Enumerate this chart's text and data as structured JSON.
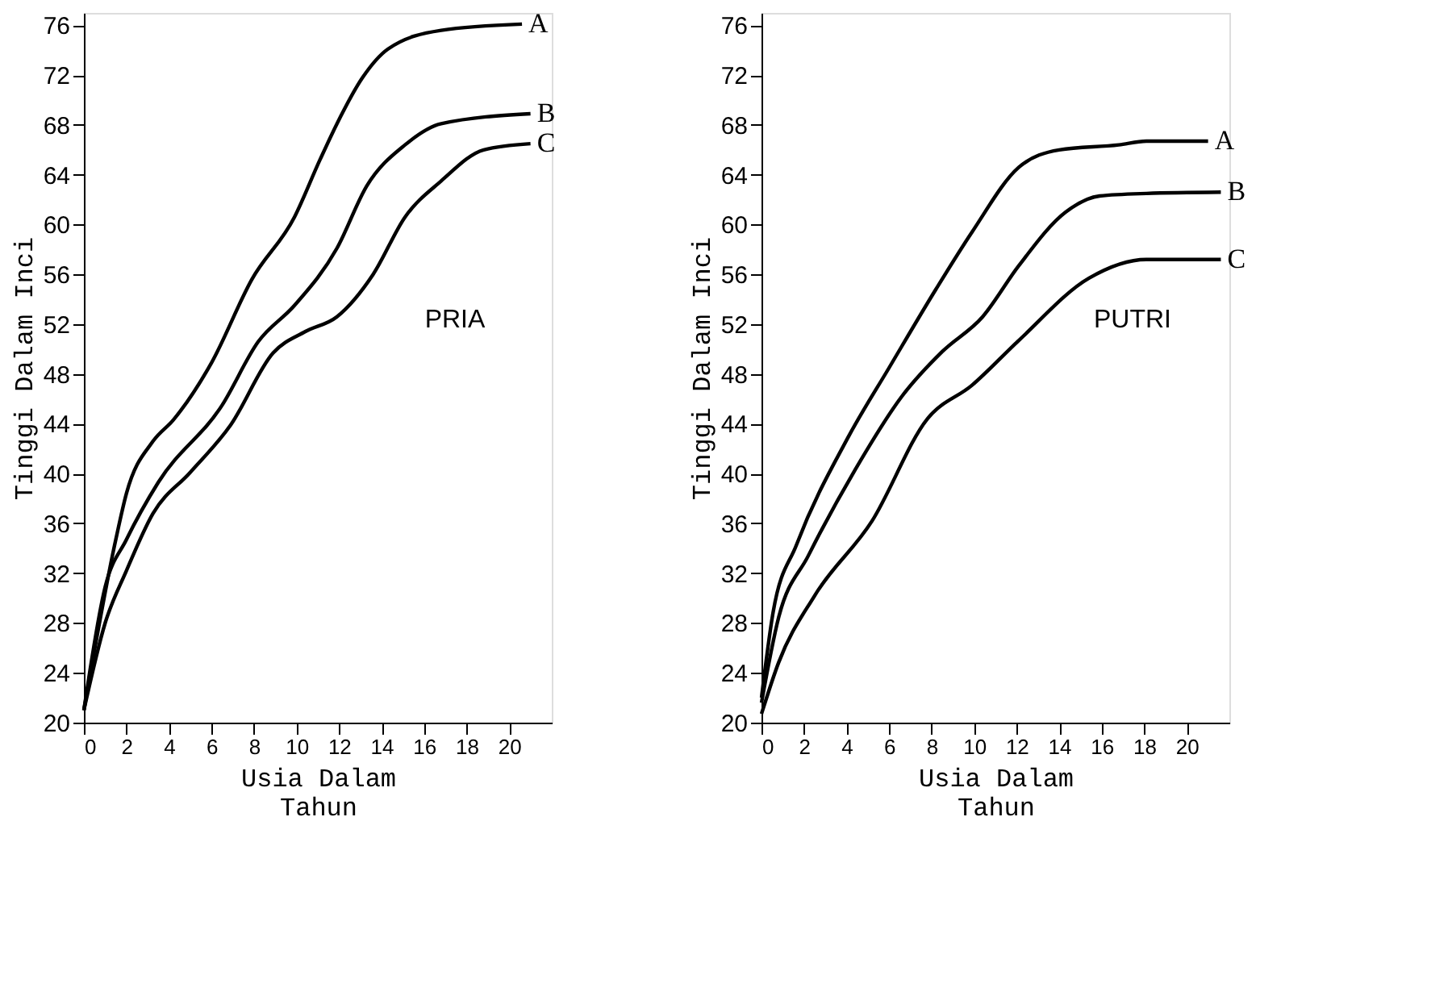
{
  "chart_data": [
    {
      "type": "line",
      "xlabel": "Usia Dalam\nTahun",
      "ylabel": "Tinggi Dalam Inci",
      "annotations": [
        "PRIA"
      ],
      "xlim": [
        0,
        22
      ],
      "ylim": [
        20,
        77
      ],
      "xticks": [
        0,
        2,
        4,
        6,
        8,
        10,
        12,
        14,
        16,
        18,
        20
      ],
      "yticks": [
        20,
        24,
        28,
        32,
        36,
        40,
        44,
        48,
        52,
        56,
        60,
        64,
        68,
        72,
        76
      ],
      "grid": false,
      "legend": false,
      "marker": "none",
      "line_style": "solid",
      "series": [
        {
          "name": "A",
          "color": "#000000",
          "x": [
            0,
            1.5,
            2.0,
            3.25,
            4.2,
            6.0,
            7.9,
            9.9,
            11.1,
            11.9,
            13.1,
            14.3,
            16.8,
            20.6
          ],
          "values": [
            21,
            34.7,
            38.4,
            42.6,
            44.3,
            48.9,
            55.6,
            60.6,
            65.2,
            68.1,
            71.8,
            74.1,
            75.6,
            76.1
          ]
        },
        {
          "name": "B",
          "color": "#000000",
          "x": [
            0,
            1.0,
            2.0,
            3.5,
            6.5,
            8.2,
            9.9,
            11.9,
            13.3,
            15.1,
            16.8,
            21.0
          ],
          "values": [
            21,
            30.9,
            34.7,
            39.3,
            45.5,
            50.6,
            53.5,
            58.1,
            63.1,
            66.4,
            68.1,
            68.9
          ]
        },
        {
          "name": "C",
          "color": "#000000",
          "x": [
            0,
            1.0,
            2.0,
            3.25,
            5.0,
            6.9,
            8.9,
            10.4,
            11.9,
            13.6,
            15.1,
            16.8,
            18.8,
            21.0
          ],
          "values": [
            21,
            28,
            32.2,
            36.8,
            40.1,
            43.9,
            49.7,
            51.4,
            52.6,
            56,
            60.6,
            63.5,
            66,
            66.5
          ]
        }
      ]
    },
    {
      "type": "line",
      "xlabel": "Usia Dalam\nTahun",
      "ylabel": "Tinggi Dalam Inci",
      "annotations": [
        "PUTRI"
      ],
      "xlim": [
        0,
        22
      ],
      "ylim": [
        20,
        77
      ],
      "xticks": [
        0,
        2,
        4,
        6,
        8,
        10,
        12,
        14,
        16,
        18,
        20
      ],
      "yticks": [
        20,
        24,
        28,
        32,
        36,
        40,
        44,
        48,
        52,
        56,
        60,
        64,
        68,
        72,
        76
      ],
      "grid": false,
      "legend": false,
      "marker": "none",
      "line_style": "solid",
      "series": [
        {
          "name": "A",
          "color": "#000000",
          "x": [
            0,
            0.55,
            1.65,
            4.1,
            6.0,
            8.2,
            9.9,
            12.1,
            14.0,
            16.8,
            18.1,
            21.0
          ],
          "values": [
            22,
            28.9,
            34.3,
            43,
            48.5,
            54.8,
            59.4,
            64.6,
            66,
            66.4,
            66.7,
            66.7
          ]
        },
        {
          "name": "B",
          "color": "#000000",
          "x": [
            0,
            0.8,
            2.2,
            4.4,
            6.6,
            8.5,
            10.4,
            12.1,
            14.3,
            15.9,
            18.1,
            21.6
          ],
          "values": [
            21.6,
            28.4,
            33.4,
            40.3,
            46.2,
            49.8,
            52.6,
            56.7,
            61,
            62.3,
            62.5,
            62.6
          ]
        },
        {
          "name": "C",
          "color": "#000000",
          "x": [
            0,
            0.8,
            2.5,
            5.2,
            7.8,
            9.9,
            12.1,
            15.4,
            18.1,
            21.6
          ],
          "values": [
            20.7,
            24.8,
            30.2,
            36.2,
            44.4,
            47.1,
            50.7,
            55.7,
            57.2,
            57.2
          ]
        }
      ]
    }
  ]
}
